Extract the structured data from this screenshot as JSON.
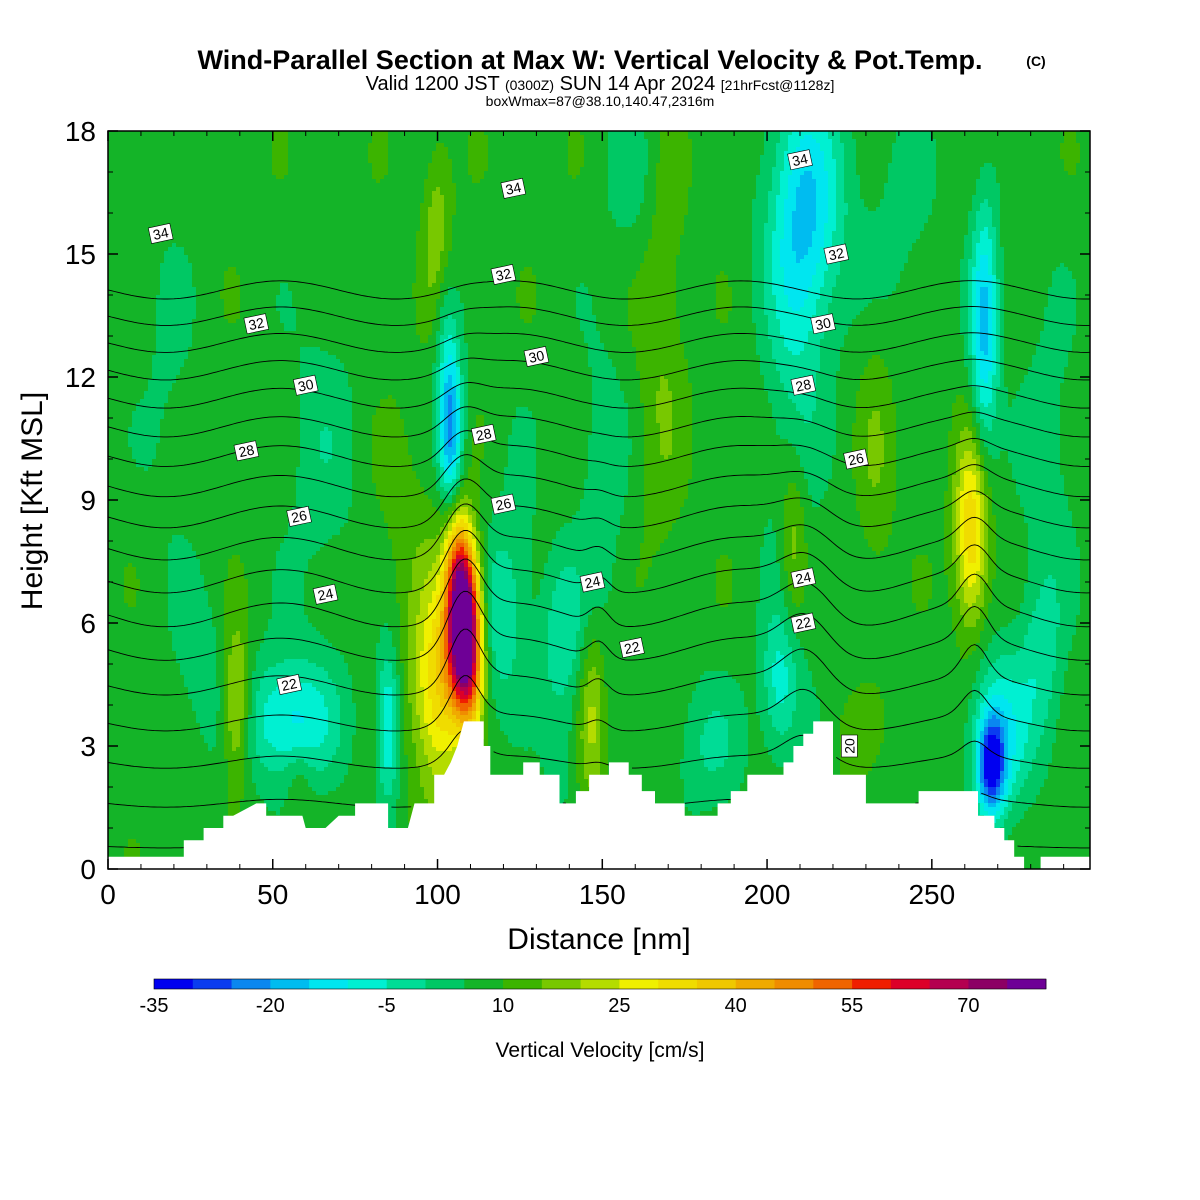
{
  "title": "Wind-Parallel Section at Max W: Vertical Velocity & Pot.Temp.",
  "copyright": "(C)",
  "subtitle_main": "Valid 1200 JST",
  "subtitle_utc": "(0300Z)",
  "subtitle_date": "SUN 14 Apr 2024",
  "subtitle_fcst": "[21hrFcst@1128z]",
  "subtitle_box": "boxWmax=87@38.10,140.47,2316m",
  "colorbar": {
    "title": "Vertical Velocity [cm/s]",
    "levels": [
      -35,
      -30,
      -25,
      -20,
      -15,
      -10,
      -5,
      0,
      5,
      10,
      15,
      20,
      25,
      30,
      35,
      40,
      45,
      50,
      55,
      60,
      65,
      70,
      75
    ],
    "colors": [
      "#0000f0",
      "#0a3cf0",
      "#0a87f0",
      "#00bcf0",
      "#00e6f0",
      "#00f0d2",
      "#00dc96",
      "#00c864",
      "#14b428",
      "#3cb400",
      "#78c800",
      "#b4dc00",
      "#f0f000",
      "#f0dc00",
      "#f0c800",
      "#f0aa00",
      "#f08c00",
      "#f06400",
      "#f01e00",
      "#dc0028",
      "#b40050",
      "#8c0064",
      "#6e0096"
    ],
    "tick_labels": [
      "-35",
      "-20",
      "-5",
      "10",
      "25",
      "40",
      "55",
      "70"
    ]
  },
  "chart_data": {
    "type": "heatmap",
    "title": "Wind-Parallel Section at Max W: Vertical Velocity & Pot.Temp.",
    "xlabel": "Distance [nm]",
    "ylabel": "Height [Kft MSL]",
    "xlim": [
      0,
      298
    ],
    "ylim": [
      0,
      18
    ],
    "x_ticks": [
      0,
      50,
      100,
      150,
      200,
      250
    ],
    "x_tick_labels": [
      "0",
      "50",
      "100",
      "150",
      "200",
      "250"
    ],
    "y_ticks": [
      0,
      3,
      6,
      9,
      12,
      15,
      18
    ],
    "y_tick_labels": [
      "0",
      "3",
      "6",
      "9",
      "12",
      "15",
      "18"
    ],
    "background_w": 8,
    "w_features": [
      {
        "x": 108,
        "y": 6.0,
        "sx": 3.5,
        "sy": 1.3,
        "w": 82
      },
      {
        "x": 106,
        "y": 7.6,
        "sx": 2.8,
        "sy": 1.0,
        "w": 20
      },
      {
        "x": 100,
        "y": 4.4,
        "sx": 5.5,
        "sy": 1.8,
        "w": 26
      },
      {
        "x": 110,
        "y": 4.6,
        "sx": 3.0,
        "sy": 1.0,
        "w": 18
      },
      {
        "x": 104,
        "y": 10.8,
        "sx": 2.5,
        "sy": 1.4,
        "w": -30
      },
      {
        "x": 102,
        "y": 13.5,
        "sx": 2.5,
        "sy": 1.4,
        "w": -8
      },
      {
        "x": 100,
        "y": 15.5,
        "sx": 3.0,
        "sy": 1.5,
        "w": 12
      },
      {
        "x": 90,
        "y": 8.5,
        "sx": 7.0,
        "sy": 2.0,
        "w": 4
      },
      {
        "x": 118,
        "y": 6.0,
        "sx": 5.0,
        "sy": 1.6,
        "w": -12
      },
      {
        "x": 39,
        "y": 4.0,
        "sx": 3.0,
        "sy": 1.3,
        "w": 20
      },
      {
        "x": 55,
        "y": 3.6,
        "sx": 10.0,
        "sy": 1.1,
        "w": -20
      },
      {
        "x": 28,
        "y": 5.0,
        "sx": 6.0,
        "sy": 1.5,
        "w": -6
      },
      {
        "x": 85,
        "y": 3.5,
        "sx": 2.5,
        "sy": 1.3,
        "w": -20
      },
      {
        "x": 65,
        "y": 10.0,
        "sx": 8.0,
        "sy": 2.8,
        "w": -6
      },
      {
        "x": 18,
        "y": 12.0,
        "sx": 6.0,
        "sy": 3.0,
        "w": -4
      },
      {
        "x": 147,
        "y": 3.8,
        "sx": 3.0,
        "sy": 1.6,
        "w": 14
      },
      {
        "x": 138,
        "y": 5.5,
        "sx": 5.0,
        "sy": 1.5,
        "w": -12
      },
      {
        "x": 125,
        "y": 8.0,
        "sx": 4.0,
        "sy": 2.0,
        "w": -5
      },
      {
        "x": 150,
        "y": 9.0,
        "sx": 5.0,
        "sy": 3.0,
        "w": -7
      },
      {
        "x": 168,
        "y": 13.0,
        "sx": 5.0,
        "sy": 4.0,
        "w": 7
      },
      {
        "x": 212,
        "y": 16.0,
        "sx": 8.0,
        "sy": 2.2,
        "w": -22
      },
      {
        "x": 208,
        "y": 11.0,
        "sx": 6.0,
        "sy": 4.0,
        "w": -8
      },
      {
        "x": 208,
        "y": 8.0,
        "sx": 3.0,
        "sy": 1.6,
        "w": 14
      },
      {
        "x": 204,
        "y": 4.5,
        "sx": 4.0,
        "sy": 1.2,
        "w": -15
      },
      {
        "x": 233,
        "y": 10.0,
        "sx": 4.0,
        "sy": 2.5,
        "w": 6
      },
      {
        "x": 262,
        "y": 8.2,
        "sx": 3.5,
        "sy": 1.6,
        "w": 28
      },
      {
        "x": 266,
        "y": 13.2,
        "sx": 3.0,
        "sy": 2.2,
        "w": -24
      },
      {
        "x": 270,
        "y": 3.2,
        "sx": 6.0,
        "sy": 1.4,
        "w": -20
      },
      {
        "x": 268,
        "y": 2.5,
        "sx": 2.8,
        "sy": 0.8,
        "w": -32
      },
      {
        "x": 285,
        "y": 10.0,
        "sx": 6.0,
        "sy": 3.0,
        "w": -6
      },
      {
        "x": 283,
        "y": 5.0,
        "sx": 5.0,
        "sy": 1.6,
        "w": -10
      },
      {
        "x": 182,
        "y": 3.0,
        "sx": 8.0,
        "sy": 1.2,
        "w": -8
      },
      {
        "x": 160,
        "y": 17.0,
        "sx": 6.0,
        "sy": 1.5,
        "w": -6
      },
      {
        "x": 240,
        "y": 16.0,
        "sx": 8.0,
        "sy": 2.0,
        "w": -5
      },
      {
        "x": 137,
        "y": 2.6,
        "sx": 3.0,
        "sy": 0.8,
        "w": -6
      },
      {
        "x": 225,
        "y": 3.0,
        "sx": 3.0,
        "sy": 0.8,
        "w": 6
      },
      {
        "x": 58,
        "y": 2.2,
        "sx": 3.0,
        "sy": 0.6,
        "w": 6
      }
    ],
    "terrain": {
      "x": [
        0,
        10,
        13,
        23,
        23,
        26,
        29,
        29,
        32,
        35,
        35,
        38,
        45,
        46,
        48,
        48,
        51,
        55,
        56,
        57,
        59,
        60,
        61,
        66,
        70,
        72,
        75,
        75,
        84,
        85,
        85,
        89,
        90,
        91,
        92,
        93,
        95,
        97,
        99,
        99,
        102,
        104,
        106,
        108,
        108,
        114,
        114,
        116,
        116,
        126,
        126,
        131,
        131,
        137,
        137,
        142,
        142,
        146,
        146,
        152,
        152,
        158,
        158,
        162,
        162,
        166,
        166,
        175,
        175,
        180,
        180,
        185,
        185,
        189,
        189,
        194,
        194,
        205,
        205,
        208,
        208,
        211,
        211,
        214,
        214,
        220,
        220,
        230,
        230,
        232,
        232,
        236,
        236,
        241,
        241,
        246,
        246,
        255,
        255,
        264,
        264,
        269,
        269,
        272,
        272,
        275,
        275,
        278,
        278,
        283,
        283,
        289,
        289,
        298
      ],
      "y": [
        0.3,
        0.3,
        0.3,
        0.3,
        0.7,
        0.7,
        0.7,
        1.0,
        1.0,
        1.0,
        1.3,
        1.3,
        1.6,
        1.6,
        1.6,
        1.3,
        1.3,
        1.3,
        1.3,
        1.3,
        1.3,
        1.0,
        1.0,
        1.0,
        1.3,
        1.3,
        1.3,
        1.6,
        1.6,
        1.6,
        1.0,
        1.0,
        1.0,
        1.0,
        1.3,
        1.6,
        1.6,
        1.6,
        1.6,
        2.3,
        2.3,
        2.6,
        3.0,
        3.6,
        3.6,
        3.6,
        3.0,
        3.0,
        2.3,
        2.3,
        2.6,
        2.6,
        2.3,
        2.3,
        1.6,
        1.6,
        1.9,
        1.9,
        2.3,
        2.3,
        2.6,
        2.6,
        2.3,
        2.3,
        1.9,
        1.9,
        1.6,
        1.6,
        1.3,
        1.3,
        1.3,
        1.3,
        1.6,
        1.6,
        1.9,
        1.9,
        2.3,
        2.3,
        2.6,
        2.6,
        3.0,
        3.0,
        3.3,
        3.3,
        3.6,
        3.6,
        2.3,
        2.3,
        1.6,
        1.6,
        1.6,
        1.6,
        1.6,
        1.6,
        1.6,
        1.6,
        1.9,
        1.9,
        1.9,
        1.9,
        1.3,
        1.3,
        1.0,
        1.0,
        0.7,
        0.7,
        0.3,
        0.3,
        0,
        0,
        0.3,
        0.3,
        0.3,
        0.3
      ]
    },
    "theta_contours": [
      {
        "theta": 20,
        "label_at": [
          225,
          3.0
        ]
      },
      {
        "theta": 22,
        "label_at": [
          55,
          4.5
        ]
      },
      {
        "theta": 22,
        "label_at": [
          159,
          5.4
        ]
      },
      {
        "theta": 22,
        "label_at": [
          211,
          6.0
        ]
      },
      {
        "theta": 24,
        "label_at": [
          66,
          6.7
        ]
      },
      {
        "theta": 24,
        "label_at": [
          147,
          7.0
        ]
      },
      {
        "theta": 24,
        "label_at": [
          211,
          7.1
        ]
      },
      {
        "theta": 26,
        "label_at": [
          58,
          8.6
        ]
      },
      {
        "theta": 26,
        "label_at": [
          120,
          8.9
        ]
      },
      {
        "theta": 26,
        "label_at": [
          227,
          10.0
        ]
      },
      {
        "theta": 28,
        "label_at": [
          42,
          10.2
        ]
      },
      {
        "theta": 28,
        "label_at": [
          114,
          10.6
        ]
      },
      {
        "theta": 28,
        "label_at": [
          211,
          11.8
        ]
      },
      {
        "theta": 30,
        "label_at": [
          60,
          11.8
        ]
      },
      {
        "theta": 30,
        "label_at": [
          130,
          12.5
        ]
      },
      {
        "theta": 30,
        "label_at": [
          217,
          13.3
        ]
      },
      {
        "theta": 32,
        "label_at": [
          45,
          13.3
        ]
      },
      {
        "theta": 32,
        "label_at": [
          120,
          14.5
        ]
      },
      {
        "theta": 32,
        "label_at": [
          221,
          15.0
        ]
      },
      {
        "theta": 34,
        "label_at": [
          16,
          15.5
        ]
      },
      {
        "theta": 34,
        "label_at": [
          123,
          16.6
        ]
      },
      {
        "theta": 34,
        "label_at": [
          210,
          17.3
        ]
      }
    ]
  }
}
